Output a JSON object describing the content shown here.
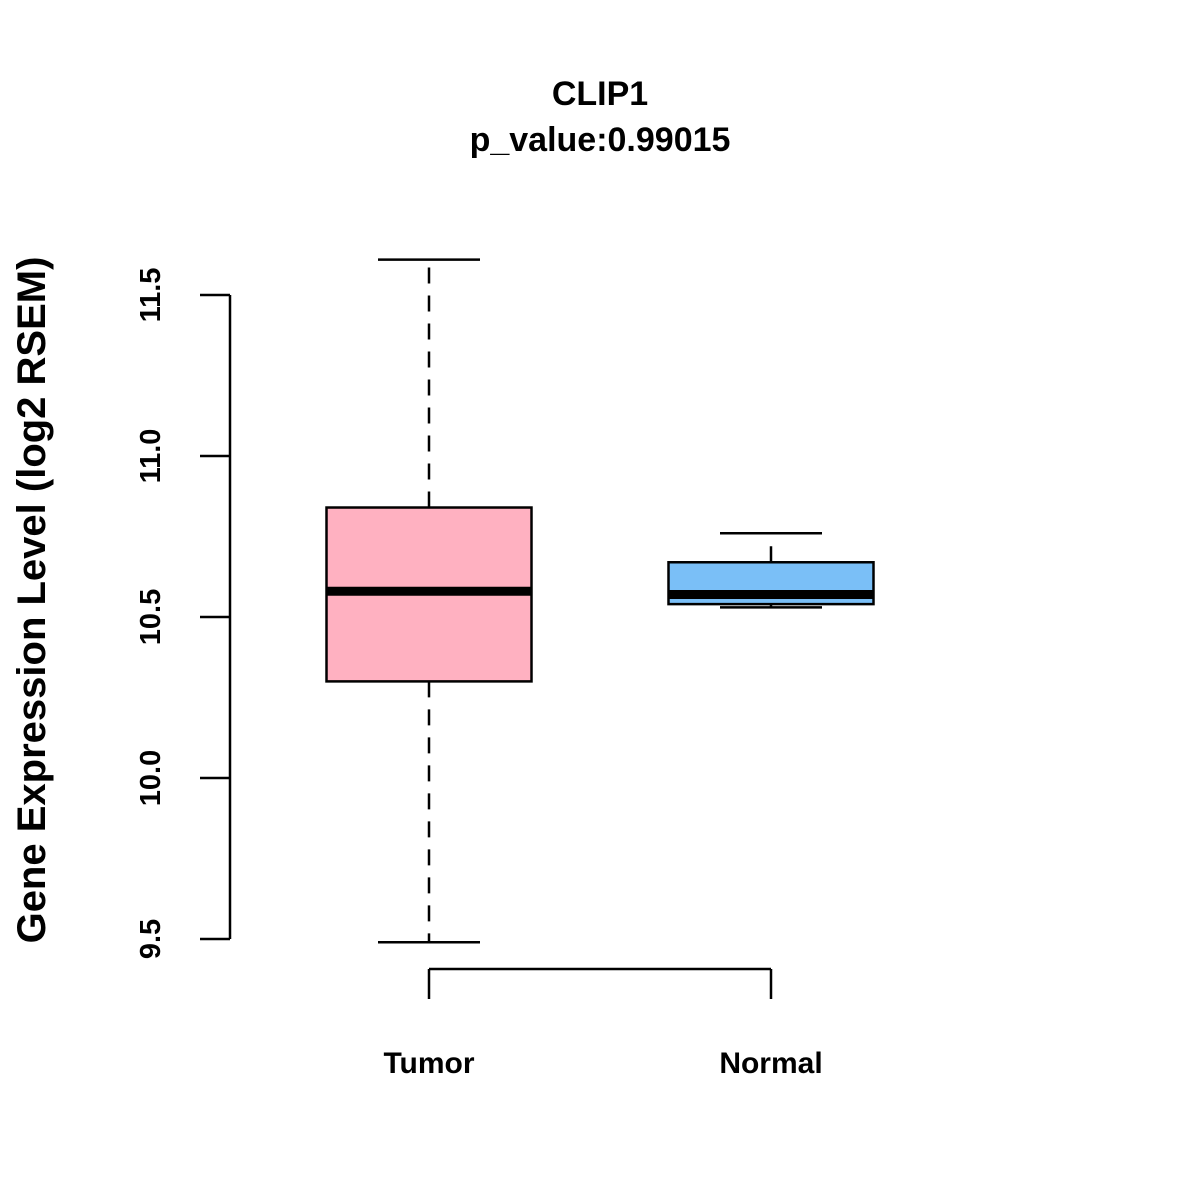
{
  "chart_data": {
    "type": "boxplot",
    "title": "CLIP1",
    "subtitle": "p_value:0.99015",
    "ylabel": "Gene Expression Level (log2 RSEM)",
    "xlabel": "",
    "ylim": [
      9.5,
      11.5
    ],
    "yticks": [
      "9.5",
      "10.0",
      "10.5",
      "11.0",
      "11.5"
    ],
    "grid": false,
    "categories": [
      "Tumor",
      "Normal"
    ],
    "boxes": [
      {
        "name": "Tumor",
        "color": "#FFB1C1",
        "whisker_low": 9.49,
        "q1": 10.3,
        "median": 10.58,
        "q3": 10.84,
        "whisker_high": 11.61
      },
      {
        "name": "Normal",
        "color": "#7ABFF7",
        "whisker_low": 10.53,
        "q1": 10.54,
        "median": 10.57,
        "q3": 10.67,
        "whisker_high": 10.76
      }
    ]
  }
}
